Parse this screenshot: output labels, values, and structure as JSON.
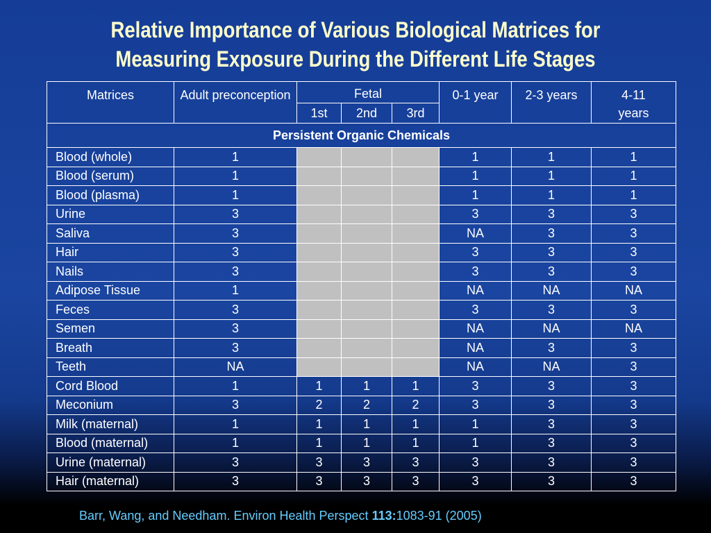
{
  "title": {
    "line1": "Relative Importance of Various Biological Matrices for",
    "line2": "Measuring Exposure During the Different Life Stages"
  },
  "table": {
    "headers": {
      "matrices": "Matrices",
      "adult": "Adult preconception",
      "fetal": "Fetal",
      "fetal_1st": "1st",
      "fetal_2nd": "2nd",
      "fetal_3rd": "3rd",
      "y0_1": "0-1 year",
      "y2_3": "2-3 years",
      "y4_11": "4-11 years"
    },
    "section_label": "Persistent Organic Chemicals",
    "rows": [
      {
        "matrix": "Blood (whole)",
        "adult": "1",
        "fetal1": "",
        "fetal2": "",
        "fetal3": "",
        "y0_1": "1",
        "y2_3": "1",
        "y4_11": "1",
        "fetal_shaded": true
      },
      {
        "matrix": "Blood (serum)",
        "adult": "1",
        "fetal1": "",
        "fetal2": "",
        "fetal3": "",
        "y0_1": "1",
        "y2_3": "1",
        "y4_11": "1",
        "fetal_shaded": true
      },
      {
        "matrix": "Blood (plasma)",
        "adult": "1",
        "fetal1": "",
        "fetal2": "",
        "fetal3": "",
        "y0_1": "1",
        "y2_3": "1",
        "y4_11": "1",
        "fetal_shaded": true
      },
      {
        "matrix": "Urine",
        "adult": "3",
        "fetal1": "",
        "fetal2": "",
        "fetal3": "",
        "y0_1": "3",
        "y2_3": "3",
        "y4_11": "3",
        "fetal_shaded": true
      },
      {
        "matrix": "Saliva",
        "adult": "3",
        "fetal1": "",
        "fetal2": "",
        "fetal3": "",
        "y0_1": "NA",
        "y2_3": "3",
        "y4_11": "3",
        "fetal_shaded": true
      },
      {
        "matrix": "Hair",
        "adult": "3",
        "fetal1": "",
        "fetal2": "",
        "fetal3": "",
        "y0_1": "3",
        "y2_3": "3",
        "y4_11": "3",
        "fetal_shaded": true
      },
      {
        "matrix": "Nails",
        "adult": "3",
        "fetal1": "",
        "fetal2": "",
        "fetal3": "",
        "y0_1": "3",
        "y2_3": "3",
        "y4_11": "3",
        "fetal_shaded": true
      },
      {
        "matrix": "Adipose Tissue",
        "adult": "1",
        "fetal1": "",
        "fetal2": "",
        "fetal3": "",
        "y0_1": "NA",
        "y2_3": "NA",
        "y4_11": "NA",
        "fetal_shaded": true
      },
      {
        "matrix": "Feces",
        "adult": "3",
        "fetal1": "",
        "fetal2": "",
        "fetal3": "",
        "y0_1": "3",
        "y2_3": "3",
        "y4_11": "3",
        "fetal_shaded": true
      },
      {
        "matrix": "Semen",
        "adult": "3",
        "fetal1": "",
        "fetal2": "",
        "fetal3": "",
        "y0_1": "NA",
        "y2_3": "NA",
        "y4_11": "NA",
        "fetal_shaded": true
      },
      {
        "matrix": "Breath",
        "adult": "3",
        "fetal1": "",
        "fetal2": "",
        "fetal3": "",
        "y0_1": "NA",
        "y2_3": "3",
        "y4_11": "3",
        "fetal_shaded": true
      },
      {
        "matrix": "Teeth",
        "adult": "NA",
        "fetal1": "",
        "fetal2": "",
        "fetal3": "",
        "y0_1": "NA",
        "y2_3": "NA",
        "y4_11": "3",
        "fetal_shaded": true
      },
      {
        "matrix": "Cord Blood",
        "adult": "1",
        "fetal1": "1",
        "fetal2": "1",
        "fetal3": "1",
        "y0_1": "3",
        "y2_3": "3",
        "y4_11": "3",
        "fetal_shaded": false
      },
      {
        "matrix": "Meconium",
        "adult": "3",
        "fetal1": "2",
        "fetal2": "2",
        "fetal3": "2",
        "y0_1": "3",
        "y2_3": "3",
        "y4_11": "3",
        "fetal_shaded": false
      },
      {
        "matrix": "Milk (maternal)",
        "adult": "1",
        "fetal1": "1",
        "fetal2": "1",
        "fetal3": "1",
        "y0_1": "1",
        "y2_3": "3",
        "y4_11": "3",
        "fetal_shaded": false
      },
      {
        "matrix": "Blood (maternal)",
        "adult": "1",
        "fetal1": "1",
        "fetal2": "1",
        "fetal3": "1",
        "y0_1": "1",
        "y2_3": "3",
        "y4_11": "3",
        "fetal_shaded": false
      },
      {
        "matrix": "Urine (maternal)",
        "adult": "3",
        "fetal1": "3",
        "fetal2": "3",
        "fetal3": "3",
        "y0_1": "3",
        "y2_3": "3",
        "y4_11": "3",
        "fetal_shaded": false
      },
      {
        "matrix": "Hair (maternal)",
        "adult": "3",
        "fetal1": "3",
        "fetal2": "3",
        "fetal3": "3",
        "y0_1": "3",
        "y2_3": "3",
        "y4_11": "3",
        "fetal_shaded": false
      }
    ]
  },
  "citation": {
    "prefix": "Barr, Wang, and Needham.  Environ Health Perspect ",
    "volume": "113:",
    "pages": "1083-91 (2005)"
  },
  "colors": {
    "title": "#ffffcc",
    "citation": "#66ccff",
    "shaded_cell": "#c0c0c0",
    "background_top": "#153d97",
    "background_bottom": "#000000"
  }
}
